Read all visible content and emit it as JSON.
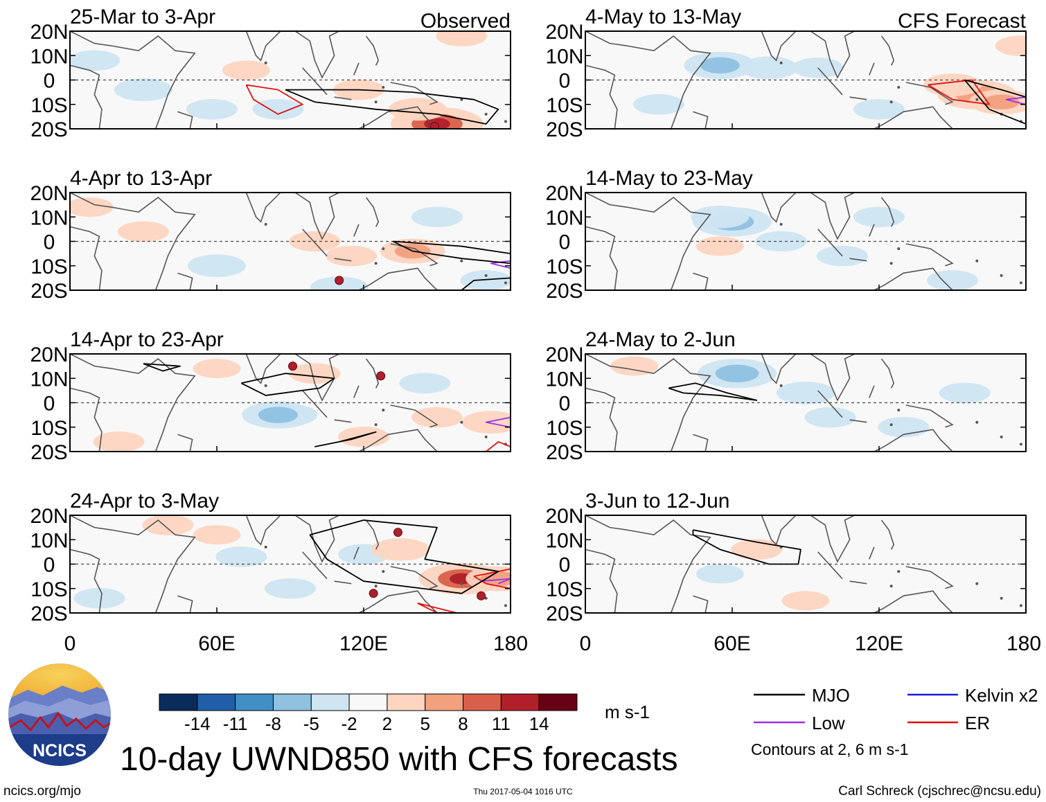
{
  "chart_data": {
    "type": "heatmap",
    "title": "10-day UWND850 with CFS forecasts",
    "variable": "UWND850",
    "units": "m s-1",
    "lon_range": [
      0,
      180
    ],
    "lat_range": [
      -20,
      20
    ],
    "x_ticks": [
      "0",
      "60E",
      "120E",
      "180"
    ],
    "x_tick_values": [
      0,
      60,
      120,
      180
    ],
    "y_ticks": [
      "20N",
      "10N",
      "0",
      "10S",
      "20S"
    ],
    "y_tick_values": [
      20,
      10,
      0,
      -10,
      -20
    ],
    "colorbar_ticks": [
      "-14",
      "-11",
      "-8",
      "-5",
      "-2",
      "2",
      "5",
      "8",
      "11",
      "14"
    ],
    "colorbar_colors": [
      "#0a2c5c",
      "#1f5fa8",
      "#4090c6",
      "#8fc1e0",
      "#cfe5f2",
      "#f8f8f8",
      "#fdd5c0",
      "#f2a07e",
      "#d8604a",
      "#b01f2a",
      "#670013"
    ],
    "contour_note": "Contours at 2, 6 m s-1",
    "legend": [
      {
        "name": "MJO",
        "color": "#000000"
      },
      {
        "name": "Kelvin x2",
        "color": "#1a1adb"
      },
      {
        "name": "Low",
        "color": "#9b30e8"
      },
      {
        "name": "ER",
        "color": "#e01010"
      }
    ],
    "panels": [
      {
        "period": "25-Mar to 3-Apr",
        "kind": "Observed",
        "anomalies": [
          {
            "lon": 30,
            "lat": -4,
            "value": -4
          },
          {
            "lon": 58,
            "lat": -12,
            "value": -3
          },
          {
            "lon": 118,
            "lat": -4,
            "value": 3
          },
          {
            "lon": 150,
            "lat": -18,
            "value": 9
          },
          {
            "lon": 142,
            "lat": -12,
            "value": 4
          },
          {
            "lon": 160,
            "lat": 18,
            "value": 3
          },
          {
            "lon": 85,
            "lat": -12,
            "value": -3
          },
          {
            "lon": 72,
            "lat": 4,
            "value": 2.5
          },
          {
            "lon": 10,
            "lat": 8,
            "value": -3
          }
        ],
        "mjo": [
          [
            [
              88,
              -4
            ],
            [
              118,
              -4
            ],
            [
              140,
              -5
            ],
            [
              165,
              -8
            ],
            [
              175,
              -12
            ],
            [
              170,
              -18
            ],
            [
              150,
              -14
            ],
            [
              125,
              -12
            ],
            [
              100,
              -9
            ],
            [
              88,
              -4
            ]
          ]
        ],
        "er": [
          [
            [
              72,
              -2
            ],
            [
              85,
              -4
            ],
            [
              95,
              -10
            ],
            [
              85,
              -14
            ],
            [
              75,
              -8
            ],
            [
              72,
              -2
            ]
          ]
        ],
        "low": [],
        "tcs": [
          {
            "lon": 149,
            "lat": -19
          }
        ]
      },
      {
        "period": "4-Apr to 13-Apr",
        "kind": "Observed",
        "anomalies": [
          {
            "lon": 30,
            "lat": 4,
            "value": 3
          },
          {
            "lon": 60,
            "lat": -10,
            "value": -4
          },
          {
            "lon": 100,
            "lat": 0,
            "value": 3
          },
          {
            "lon": 140,
            "lat": -4,
            "value": 5
          },
          {
            "lon": 115,
            "lat": -6,
            "value": 3
          },
          {
            "lon": 110,
            "lat": -19,
            "value": -4
          },
          {
            "lon": 150,
            "lat": 10,
            "value": -3
          },
          {
            "lon": 8,
            "lat": 14,
            "value": 2.5
          },
          {
            "lon": 170,
            "lat": -16,
            "value": -3
          }
        ],
        "mjo": [
          [
            [
              132,
              0
            ],
            [
              160,
              -2
            ],
            [
              180,
              -5
            ],
            [
              180,
              -9
            ],
            [
              160,
              -7
            ],
            [
              140,
              -4
            ],
            [
              132,
              0
            ]
          ],
          [
            [
              160,
              -20
            ],
            [
              165,
              -16
            ],
            [
              180,
              -15
            ],
            [
              180,
              -20
            ]
          ]
        ],
        "er": [],
        "low": [
          [
            [
              180,
              -8
            ],
            [
              172,
              -9
            ],
            [
              180,
              -11
            ]
          ]
        ],
        "tcs": [
          {
            "lon": 110,
            "lat": -16
          }
        ]
      },
      {
        "period": "14-Apr to 23-Apr",
        "kind": "Observed",
        "anomalies": [
          {
            "lon": 90,
            "lat": -5,
            "value": -3.5
          },
          {
            "lon": 85,
            "lat": -5,
            "value": -6
          },
          {
            "lon": 100,
            "lat": 12,
            "value": 3
          },
          {
            "lon": 60,
            "lat": 14,
            "value": 2.5
          },
          {
            "lon": 150,
            "lat": -6,
            "value": 3
          },
          {
            "lon": 172,
            "lat": -8,
            "value": 4
          },
          {
            "lon": 120,
            "lat": -14,
            "value": 3
          },
          {
            "lon": 20,
            "lat": -16,
            "value": 3
          },
          {
            "lon": 145,
            "lat": 8,
            "value": -3
          }
        ],
        "mjo": [
          [
            [
              70,
              8
            ],
            [
              88,
              12
            ],
            [
              108,
              10
            ],
            [
              102,
              6
            ],
            [
              80,
              3
            ],
            [
              70,
              8
            ]
          ],
          [
            [
              100,
              -18
            ],
            [
              115,
              -15
            ],
            [
              125,
              -12
            ],
            [
              110,
              -16
            ],
            [
              100,
              -18
            ]
          ],
          [
            [
              30,
              16
            ],
            [
              45,
              15
            ],
            [
              38,
              13
            ],
            [
              30,
              16
            ]
          ]
        ],
        "er": [
          [
            [
              170,
              -20
            ],
            [
              175,
              -16
            ],
            [
              180,
              -18
            ]
          ]
        ],
        "low": [
          [
            [
              180,
              -10
            ],
            [
              170,
              -8
            ],
            [
              180,
              -6
            ]
          ]
        ],
        "tcs": [
          {
            "lon": 91,
            "lat": 15
          },
          {
            "lon": 127,
            "lat": 11
          }
        ]
      },
      {
        "period": "24-Apr to 3-May",
        "kind": "Observed",
        "anomalies": [
          {
            "lon": 70,
            "lat": 3,
            "value": -3
          },
          {
            "lon": 120,
            "lat": 4,
            "value": -3
          },
          {
            "lon": 160,
            "lat": -6,
            "value": 8
          },
          {
            "lon": 175,
            "lat": -6,
            "value": 5
          },
          {
            "lon": 135,
            "lat": 6,
            "value": 4
          },
          {
            "lon": 60,
            "lat": 12,
            "value": 2.5
          },
          {
            "lon": 40,
            "lat": 16,
            "value": 3
          },
          {
            "lon": 90,
            "lat": -10,
            "value": -3
          },
          {
            "lon": 12,
            "lat": -14,
            "value": -3
          }
        ],
        "mjo": [
          [
            [
              98,
              12
            ],
            [
              120,
              18
            ],
            [
              150,
              15
            ],
            [
              145,
              2
            ],
            [
              175,
              -3
            ],
            [
              160,
              -12
            ],
            [
              120,
              -7
            ],
            [
              105,
              2
            ],
            [
              98,
              12
            ]
          ]
        ],
        "er": [
          [
            [
              165,
              -5
            ],
            [
              180,
              -2
            ],
            [
              180,
              -10
            ],
            [
              170,
              -8
            ],
            [
              165,
              -5
            ]
          ],
          [
            [
              142,
              -16
            ],
            [
              158,
              -20
            ],
            [
              150,
              -20
            ],
            [
              142,
              -16
            ]
          ]
        ],
        "low": [
          [
            [
              168,
              -7
            ],
            [
              180,
              -6
            ],
            [
              175,
              -8
            ]
          ]
        ],
        "tcs": [
          {
            "lon": 134,
            "lat": 13
          },
          {
            "lon": 124,
            "lat": -12
          },
          {
            "lon": 168,
            "lat": -13
          }
        ]
      },
      {
        "period": "4-May to 13-May",
        "kind": "CFS Forecast",
        "anomalies": [
          {
            "lon": 55,
            "lat": 6,
            "value": -6
          },
          {
            "lon": 75,
            "lat": 5,
            "value": -4
          },
          {
            "lon": 95,
            "lat": 5,
            "value": -3
          },
          {
            "lon": 160,
            "lat": -6,
            "value": 7
          },
          {
            "lon": 150,
            "lat": -2,
            "value": 4
          },
          {
            "lon": 170,
            "lat": -9,
            "value": 5
          },
          {
            "lon": 178,
            "lat": 14,
            "value": 3
          },
          {
            "lon": 120,
            "lat": -12,
            "value": -3
          },
          {
            "lon": 30,
            "lat": -10,
            "value": -3
          }
        ],
        "mjo": [
          [
            [
              155,
              0
            ],
            [
              170,
              -4
            ],
            [
              180,
              -7
            ],
            [
              180,
              -18
            ],
            [
              165,
              -12
            ],
            [
              155,
              0
            ]
          ]
        ],
        "er": [
          [
            [
              140,
              -2
            ],
            [
              158,
              0
            ],
            [
              165,
              -10
            ],
            [
              150,
              -8
            ],
            [
              140,
              -2
            ]
          ]
        ],
        "low": [
          [
            [
              180,
              -7
            ],
            [
              172,
              -8
            ],
            [
              180,
              -10
            ]
          ]
        ],
        "tcs": []
      },
      {
        "period": "14-May to 23-May",
        "kind": "CFS Forecast",
        "anomalies": [
          {
            "lon": 60,
            "lat": 8,
            "value": -7
          },
          {
            "lon": 55,
            "lat": 10,
            "value": -4
          },
          {
            "lon": 80,
            "lat": 0,
            "value": -3
          },
          {
            "lon": 105,
            "lat": -6,
            "value": -3
          },
          {
            "lon": 120,
            "lat": 10,
            "value": -3
          },
          {
            "lon": 55,
            "lat": -2,
            "value": 2.5
          },
          {
            "lon": 150,
            "lat": -16,
            "value": -3
          }
        ],
        "mjo": [],
        "er": [],
        "low": [],
        "tcs": []
      },
      {
        "period": "24-May to 2-Jun",
        "kind": "CFS Forecast",
        "anomalies": [
          {
            "lon": 62,
            "lat": 12,
            "value": -7
          },
          {
            "lon": 90,
            "lat": 4,
            "value": -4
          },
          {
            "lon": 100,
            "lat": -6,
            "value": -3
          },
          {
            "lon": 130,
            "lat": -10,
            "value": -3
          },
          {
            "lon": 20,
            "lat": 15,
            "value": 2.5
          },
          {
            "lon": 155,
            "lat": 4,
            "value": -3
          }
        ],
        "mjo": [
          [
            [
              34,
              6
            ],
            [
              45,
              8
            ],
            [
              58,
              4
            ],
            [
              70,
              1
            ],
            [
              55,
              3
            ],
            [
              40,
              4
            ],
            [
              34,
              6
            ]
          ]
        ],
        "er": [],
        "low": [],
        "tcs": []
      },
      {
        "period": "3-Jun to 12-Jun",
        "kind": "CFS Forecast",
        "anomalies": [
          {
            "lon": 70,
            "lat": 6,
            "value": 3
          },
          {
            "lon": 90,
            "lat": -15,
            "value": 2.5
          },
          {
            "lon": 55,
            "lat": -4,
            "value": -2.5
          }
        ],
        "mjo": [
          [
            [
              44,
              14
            ],
            [
              70,
              9
            ],
            [
              88,
              6
            ],
            [
              87,
              0
            ],
            [
              75,
              0
            ],
            [
              55,
              6
            ],
            [
              44,
              12
            ],
            [
              44,
              14
            ]
          ]
        ],
        "er": [],
        "low": [],
        "tcs": []
      }
    ]
  },
  "header": {
    "org": "NCICS"
  },
  "footer": {
    "site": "ncics.org/mjo",
    "timestamp": "Thu 2017-05-04 1016 UTC",
    "credit": "Carl Schreck (cjschrec@ncsu.edu)"
  }
}
